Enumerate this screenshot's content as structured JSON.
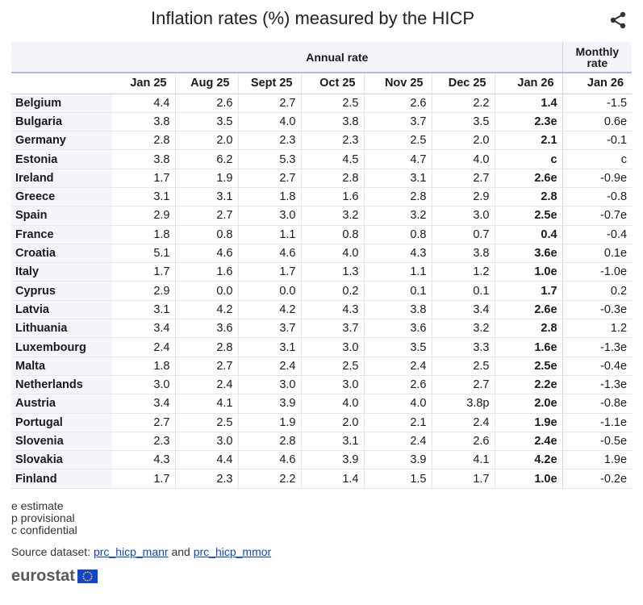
{
  "title": "Inflation rates (%) measured by the HICP",
  "share_icon": "share-icon",
  "table": {
    "group_annual": "Annual rate",
    "group_monthly": "Monthly rate",
    "columns": [
      "Jan 25",
      "Aug 25",
      "Sept 25",
      "Oct 25",
      "Nov 25",
      "Dec 25",
      "Jan 26",
      "Jan 26"
    ],
    "rows": [
      {
        "country": "Belgium",
        "values": [
          "4.4",
          "2.6",
          "2.7",
          "2.5",
          "2.6",
          "2.2",
          "1.4",
          "-1.5"
        ]
      },
      {
        "country": "Bulgaria",
        "values": [
          "3.8",
          "3.5",
          "4.0",
          "3.8",
          "3.7",
          "3.5",
          "2.3e",
          "0.6e"
        ]
      },
      {
        "country": "Germany",
        "values": [
          "2.8",
          "2.0",
          "2.3",
          "2.3",
          "2.5",
          "2.0",
          "2.1",
          "-0.1"
        ]
      },
      {
        "country": "Estonia",
        "values": [
          "3.8",
          "6.2",
          "5.3",
          "4.5",
          "4.7",
          "4.0",
          "c",
          "c"
        ]
      },
      {
        "country": "Ireland",
        "values": [
          "1.7",
          "1.9",
          "2.7",
          "2.8",
          "3.1",
          "2.7",
          "2.6e",
          "-0.9e"
        ]
      },
      {
        "country": "Greece",
        "values": [
          "3.1",
          "3.1",
          "1.8",
          "1.6",
          "2.8",
          "2.9",
          "2.8",
          "-0.8"
        ]
      },
      {
        "country": "Spain",
        "values": [
          "2.9",
          "2.7",
          "3.0",
          "3.2",
          "3.2",
          "3.0",
          "2.5e",
          "-0.7e"
        ]
      },
      {
        "country": "France",
        "values": [
          "1.8",
          "0.8",
          "1.1",
          "0.8",
          "0.8",
          "0.7",
          "0.4",
          "-0.4"
        ]
      },
      {
        "country": "Croatia",
        "values": [
          "5.1",
          "4.6",
          "4.6",
          "4.0",
          "4.3",
          "3.8",
          "3.6e",
          "0.1e"
        ]
      },
      {
        "country": "Italy",
        "values": [
          "1.7",
          "1.6",
          "1.7",
          "1.3",
          "1.1",
          "1.2",
          "1.0e",
          "-1.0e"
        ]
      },
      {
        "country": "Cyprus",
        "values": [
          "2.9",
          "0.0",
          "0.0",
          "0.2",
          "0.1",
          "0.1",
          "1.7",
          "0.2"
        ]
      },
      {
        "country": "Latvia",
        "values": [
          "3.1",
          "4.2",
          "4.2",
          "4.3",
          "3.8",
          "3.4",
          "2.6e",
          "-0.3e"
        ]
      },
      {
        "country": "Lithuania",
        "values": [
          "3.4",
          "3.6",
          "3.7",
          "3.7",
          "3.6",
          "3.2",
          "2.8",
          "1.2"
        ]
      },
      {
        "country": "Luxembourg",
        "values": [
          "2.4",
          "2.8",
          "3.1",
          "3.0",
          "3.5",
          "3.3",
          "1.6e",
          "-1.3e"
        ]
      },
      {
        "country": "Malta",
        "values": [
          "1.8",
          "2.7",
          "2.4",
          "2.5",
          "2.4",
          "2.5",
          "2.5e",
          "-0.4e"
        ]
      },
      {
        "country": "Netherlands",
        "values": [
          "3.0",
          "2.4",
          "3.0",
          "3.0",
          "2.6",
          "2.7",
          "2.2e",
          "-1.3e"
        ]
      },
      {
        "country": "Austria",
        "values": [
          "3.4",
          "4.1",
          "3.9",
          "4.0",
          "4.0",
          "3.8p",
          "2.0e",
          "-0.8e"
        ]
      },
      {
        "country": "Portugal",
        "values": [
          "2.7",
          "2.5",
          "1.9",
          "2.0",
          "2.1",
          "2.4",
          "1.9e",
          "-1.1e"
        ]
      },
      {
        "country": "Slovenia",
        "values": [
          "2.3",
          "3.0",
          "2.8",
          "3.1",
          "2.4",
          "2.6",
          "2.4e",
          "-0.5e"
        ]
      },
      {
        "country": "Slovakia",
        "values": [
          "4.3",
          "4.4",
          "4.6",
          "3.9",
          "3.9",
          "4.1",
          "4.2e",
          "1.9e"
        ]
      },
      {
        "country": "Finland",
        "values": [
          "1.7",
          "2.3",
          "2.2",
          "1.4",
          "1.5",
          "1.7",
          "1.0e",
          "-0.2e"
        ]
      }
    ]
  },
  "notes": {
    "e": "e estimate",
    "p": "p provisional",
    "c": "c confidential"
  },
  "source": {
    "prefix": "Source dataset:",
    "link1": "prc_hicp_manr",
    "conjunction": "and",
    "link2": "prc_hicp_mmor"
  },
  "logo": {
    "text": "eurostat",
    "flag_icon": "eu-flag-icon"
  }
}
